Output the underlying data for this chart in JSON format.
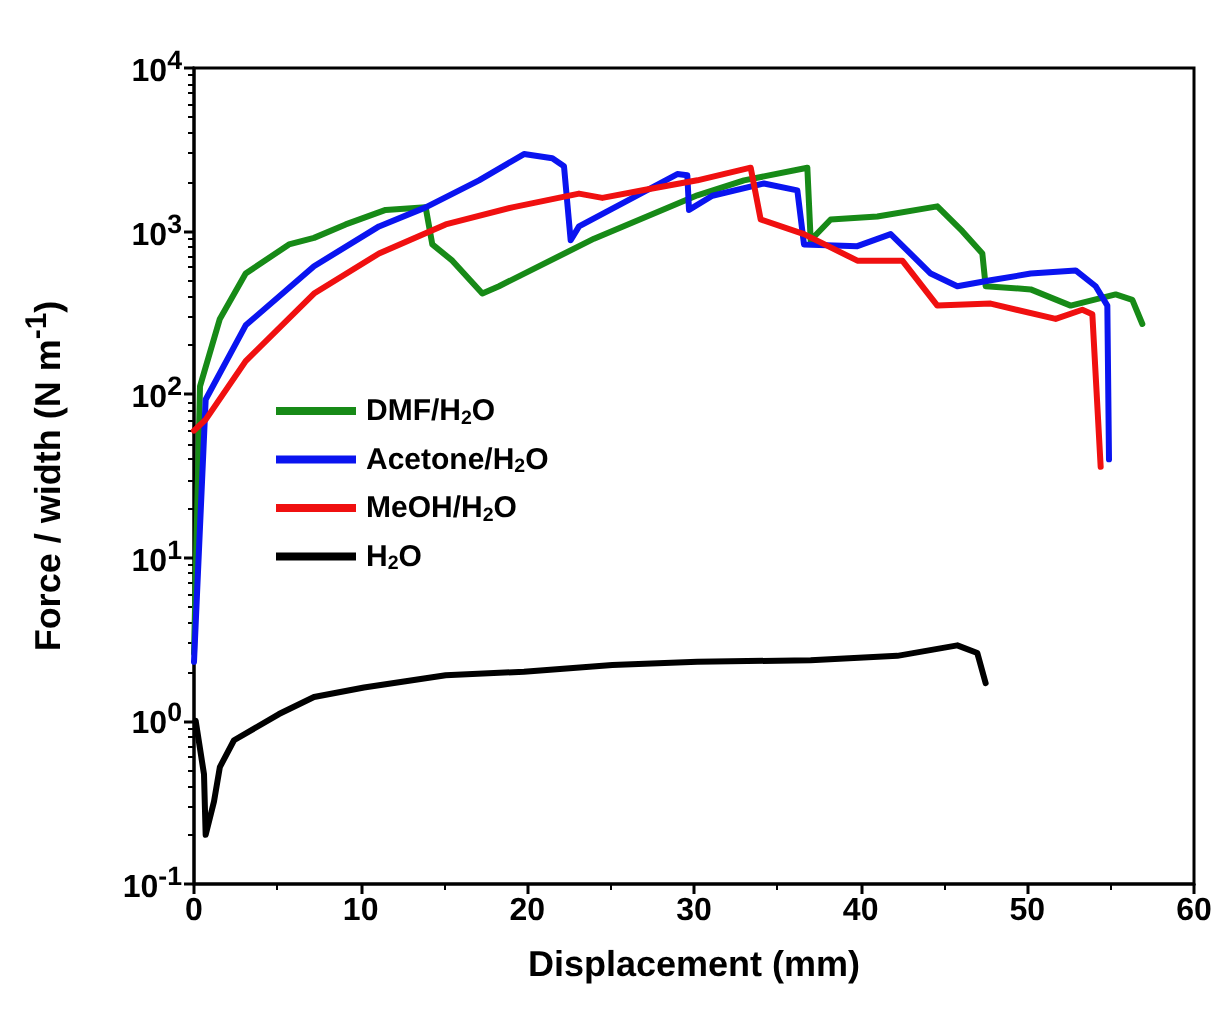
{
  "chart_data": {
    "type": "line",
    "xlabel": "Displacement (mm)",
    "ylabel": "Force / width (N m$^{-1}$)",
    "log": "y",
    "xlim": [
      0,
      60
    ],
    "xticks": [
      0,
      10,
      20,
      30,
      40,
      50,
      60
    ],
    "ylim": [
      0.1,
      10000
    ],
    "yticks": [
      {
        "value": 0.1,
        "label": "10$^{-1}$"
      },
      {
        "value": 1,
        "label": "10$^{0}$"
      },
      {
        "value": 10,
        "label": "10$^{1}$"
      },
      {
        "value": 100,
        "label": "10$^{2}$"
      },
      {
        "value": 1000,
        "label": "10$^{3}$"
      },
      {
        "value": 10000,
        "label": "10$^{4}$"
      }
    ],
    "grid": false,
    "legend": "left",
    "marker": "none",
    "line_style": "solid",
    "series": [
      {
        "name": "DMF/H$_{2}$O",
        "color": "#178a17",
        "x": [
          0,
          0.36,
          1.55,
          3.1,
          5.7,
          7.2,
          9.1,
          11.5,
          13.9,
          14.3,
          15.5,
          17.3,
          18.3,
          24,
          30.2,
          33,
          36.8,
          37.0,
          38.2,
          41,
          44.6,
          46.1,
          47.3,
          47.5,
          50.2,
          52.6,
          55.3,
          56.3,
          56.9
        ],
        "values": [
          2.6,
          112,
          290,
          550,
          830,
          910,
          1100,
          1350,
          1400,
          830,
          660,
          415,
          460,
          900,
          1660,
          2050,
          2450,
          880,
          1180,
          1230,
          1420,
          1000,
          730,
          460,
          440,
          350,
          410,
          380,
          270
        ]
      },
      {
        "name": "Acetone/H$_{2}$O",
        "color": "#0a14f0",
        "x": [
          0,
          0.7,
          3.1,
          7.2,
          11.1,
          13.9,
          17.1,
          19.8,
          21.5,
          22.2,
          22.6,
          23.1,
          29,
          29.6,
          29.7,
          31.1,
          34.2,
          36.2,
          36.6,
          39.8,
          41.8,
          44.2,
          45.8,
          47.8,
          50.2,
          52.9,
          54.1,
          54.8,
          54.9
        ],
        "values": [
          2.3,
          93,
          265,
          610,
          1070,
          1400,
          2050,
          2970,
          2800,
          2500,
          880,
          1070,
          2240,
          2200,
          1350,
          1650,
          1960,
          1780,
          830,
          810,
          960,
          550,
          460,
          500,
          550,
          575,
          460,
          350,
          40
        ]
      },
      {
        "name": "MeOH/H$_{2}$O",
        "color": "#f01010",
        "x": [
          0,
          0.7,
          3.1,
          7.2,
          11.1,
          15.1,
          19.1,
          23.1,
          24.5,
          27,
          30.2,
          33.4,
          34,
          36.6,
          39.8,
          42.5,
          44.6,
          47.8,
          51.7,
          53.3,
          53.9,
          54.4
        ],
        "values": [
          60,
          70,
          160,
          415,
          730,
          1100,
          1400,
          1700,
          1600,
          1790,
          2050,
          2450,
          1180,
          960,
          660,
          660,
          350,
          360,
          290,
          330,
          310,
          36
        ]
      },
      {
        "name": "H$_{2}$O",
        "color": "#000000",
        "x": [
          0.1,
          0.6,
          0.7,
          1.2,
          1.55,
          2.4,
          5.1,
          7.2,
          10.2,
          15.1,
          19.8,
          25.1,
          30.2,
          37,
          42.2,
          45.8,
          47,
          47.5
        ],
        "values": [
          1.0,
          0.47,
          0.2,
          0.32,
          0.52,
          0.76,
          1.1,
          1.4,
          1.6,
          1.9,
          2.0,
          2.2,
          2.3,
          2.35,
          2.5,
          2.9,
          2.6,
          1.7
        ]
      }
    ]
  }
}
